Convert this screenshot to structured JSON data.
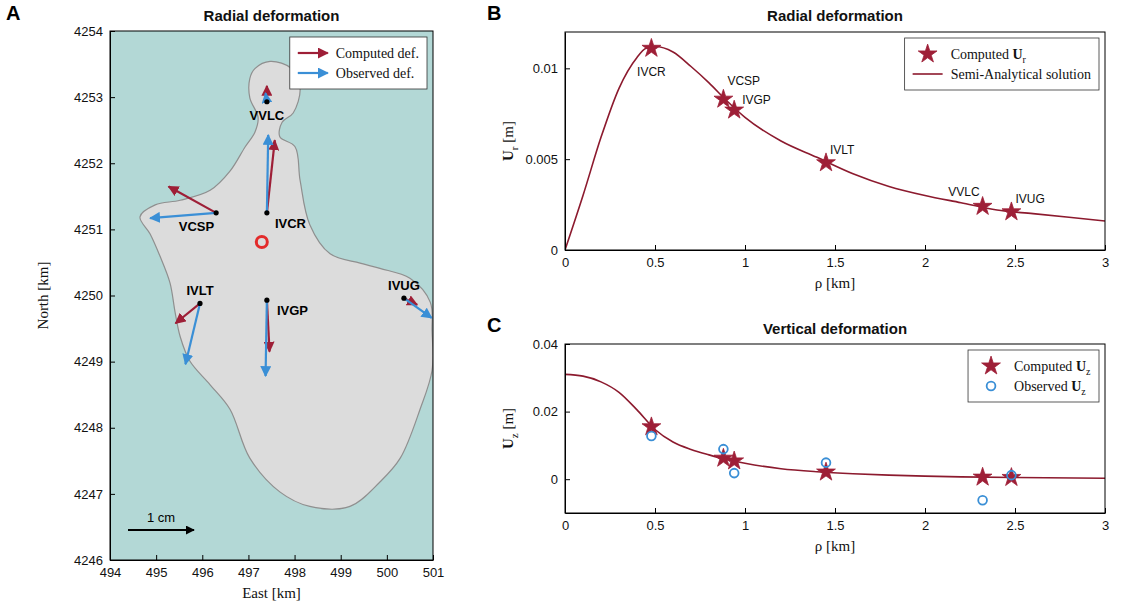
{
  "chart_data": [
    {
      "type": "vector_map",
      "panel": "A",
      "title": "Radial deformation",
      "x_label": "East [km]",
      "y_label": "North [km]",
      "xlim": [
        494,
        501
      ],
      "ylim": [
        4246,
        4254
      ],
      "xticks": [
        494,
        495,
        496,
        497,
        498,
        499,
        500,
        501
      ],
      "yticks": [
        4246,
        4247,
        4248,
        4249,
        4250,
        4251,
        4252,
        4253,
        4254
      ],
      "legend": "upper right",
      "stations": {
        "names": [
          "VVLC",
          "IVCR",
          "VCSP",
          "IVLT",
          "IVGP",
          "IVUG"
        ],
        "east": [
          497.4,
          497.4,
          496.3,
          495.95,
          497.4,
          500.37
        ],
        "north": [
          4252.93,
          4251.25,
          4251.25,
          4249.88,
          4249.93,
          4249.96
        ]
      },
      "source": {
        "east": 497.29,
        "north": 4250.81,
        "color": "#e32b2b"
      },
      "series": [
        {
          "name": "Computed def.",
          "color": "#9e1f37",
          "dx": [
            0.0,
            0.12,
            -0.72,
            -0.37,
            0.04,
            0.2
          ],
          "dy": [
            0.24,
            1.1,
            0.4,
            -0.3,
            -0.78,
            -0.1
          ]
        },
        {
          "name": "Observed def.",
          "color": "#3a8fd6",
          "dx": [
            -0.02,
            0.02,
            -1.0,
            -0.22,
            -0.02,
            0.42
          ],
          "dy": [
            0.13,
            1.18,
            -0.08,
            -0.92,
            -1.15,
            -0.3
          ]
        }
      ],
      "scale": {
        "value": 1,
        "label": "1 cm"
      }
    },
    {
      "type": "line",
      "panel": "B",
      "title": "Radial deformation",
      "x_label": "ρ [km]",
      "y_label": "Ur [m]",
      "xlim": [
        0,
        3
      ],
      "ylim": [
        0,
        0.012
      ],
      "xticks": [
        0,
        0.5,
        1,
        1.5,
        2,
        2.5,
        3
      ],
      "yticks": [
        0,
        0.005,
        0.01
      ],
      "legend": "upper right",
      "series": [
        {
          "name": "Computed Ur",
          "type": "scatter",
          "marker": "star",
          "color": "#9e1f37",
          "x": [
            0.48,
            0.88,
            0.94,
            1.45,
            2.32,
            2.48
          ],
          "values": [
            0.0111,
            0.0083,
            0.0077,
            0.0048,
            0.0024,
            0.0021
          ],
          "point_labels": [
            "IVCR",
            "VCSP",
            "IVGP",
            "IVLT",
            "VVLC",
            "IVUG"
          ]
        },
        {
          "name": "Semi-Analytical solution",
          "type": "line",
          "line_style": "solid",
          "color": "#8c1a2e",
          "x": [
            0,
            0.1,
            0.2,
            0.3,
            0.4,
            0.45,
            0.5,
            0.6,
            0.7,
            0.8,
            0.9,
            1.0,
            1.2,
            1.4,
            1.6,
            1.8,
            2.0,
            2.2,
            2.4,
            2.6,
            2.8,
            3.0
          ],
          "values": [
            0,
            0.003,
            0.0062,
            0.0089,
            0.0106,
            0.0111,
            0.0112,
            0.0109,
            0.0101,
            0.0092,
            0.0082,
            0.0073,
            0.006,
            0.0051,
            0.0042,
            0.0035,
            0.003,
            0.0026,
            0.0022,
            0.002,
            0.0018,
            0.0016
          ]
        }
      ]
    },
    {
      "type": "line",
      "panel": "C",
      "title": "Vertical deformation",
      "x_label": "ρ [km]",
      "y_label": "Uz [m]",
      "xlim": [
        0,
        3
      ],
      "ylim": [
        -0.01,
        0.04
      ],
      "xticks": [
        0,
        0.5,
        1,
        1.5,
        2,
        2.5,
        3
      ],
      "yticks": [
        0,
        0.02,
        0.04
      ],
      "legend": "upper right",
      "series": [
        {
          "name": "Computed Uz",
          "type": "scatter",
          "marker": "star",
          "color": "#9e1f37",
          "x": [
            0.48,
            0.88,
            0.94,
            1.45,
            2.32,
            2.48
          ],
          "values": [
            0.0155,
            0.0062,
            0.0054,
            0.0021,
            0.0006,
            0.0005
          ]
        },
        {
          "name": "Observed Uz",
          "type": "scatter",
          "marker": "circle",
          "color": "#3a8fd6",
          "x": [
            0.48,
            0.88,
            0.94,
            1.45,
            2.32,
            2.48
          ],
          "values": [
            0.0128,
            0.0089,
            0.0018,
            0.0049,
            -0.0062,
            0.0012
          ]
        },
        {
          "type": "line",
          "line_style": "solid",
          "color": "#8c1a2e",
          "x": [
            0,
            0.1,
            0.2,
            0.3,
            0.4,
            0.5,
            0.6,
            0.7,
            0.8,
            0.9,
            1.0,
            1.2,
            1.4,
            1.6,
            1.8,
            2.0,
            2.2,
            2.5,
            3.0
          ],
          "values": [
            0.031,
            0.0305,
            0.0288,
            0.0257,
            0.0205,
            0.0147,
            0.011,
            0.0088,
            0.0072,
            0.0058,
            0.0047,
            0.0031,
            0.0022,
            0.0016,
            0.0012,
            0.0009,
            0.0007,
            0.0005,
            0.0003
          ]
        }
      ]
    }
  ]
}
